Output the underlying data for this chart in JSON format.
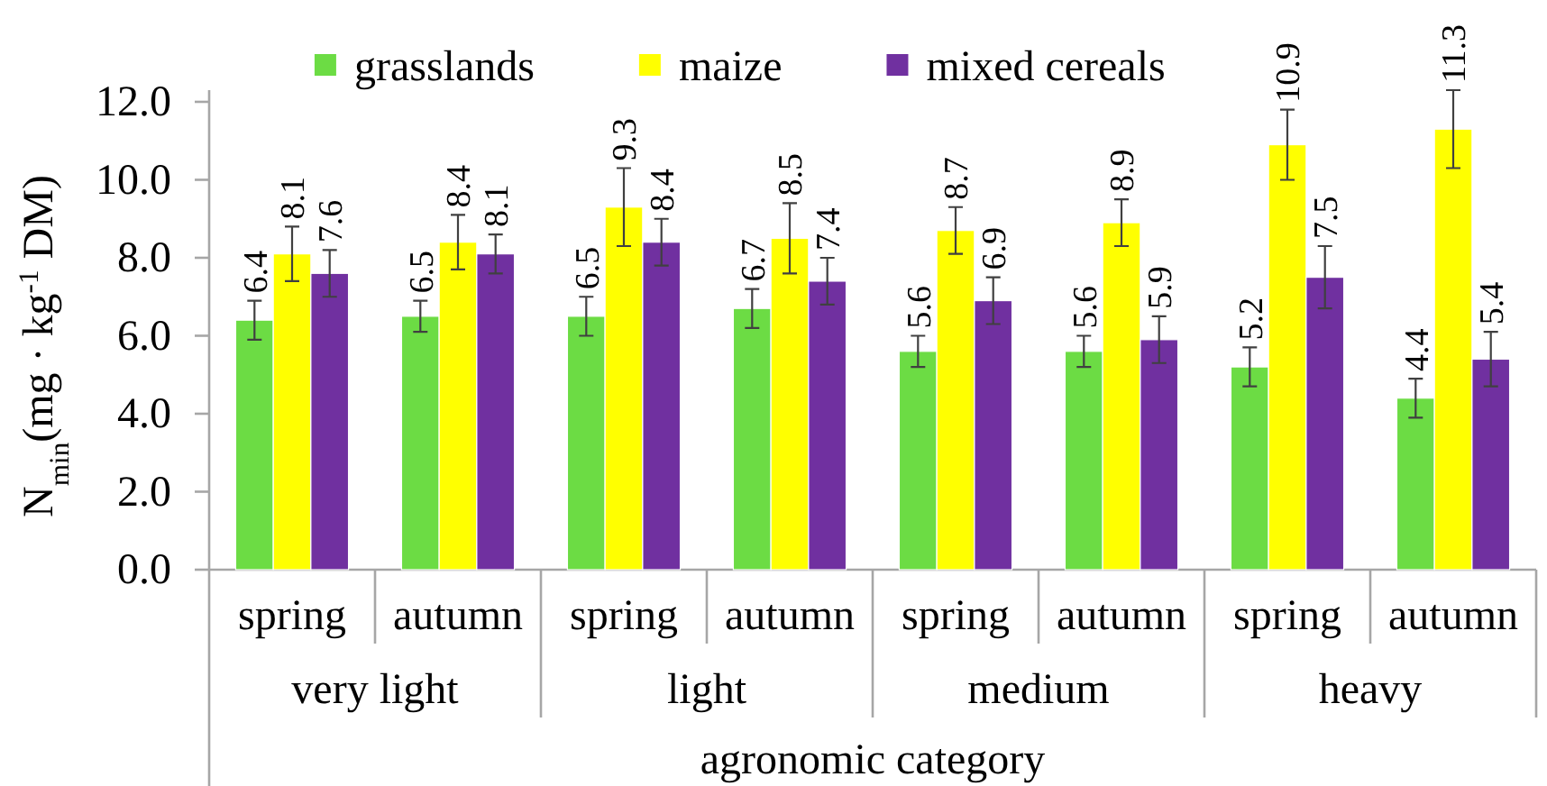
{
  "chart_data": {
    "type": "bar",
    "categories": [
      "spring",
      "autumn",
      "spring",
      "autumn",
      "spring",
      "autumn",
      "spring",
      "autumn"
    ],
    "annotations": [
      "very light",
      "light",
      "medium",
      "heavy"
    ],
    "xlabel": "agronomic category",
    "ylabel": "N$_{min}$(mg · kg$^{-1}$ DM)",
    "series": [
      {
        "name": "grasslands",
        "color": "#6cdc44",
        "values": [
          6.4,
          6.5,
          6.5,
          6.7,
          5.6,
          5.6,
          5.2,
          4.4
        ],
        "errors": [
          0.5,
          0.4,
          0.5,
          0.5,
          0.4,
          0.4,
          0.5,
          0.5
        ]
      },
      {
        "name": "maize",
        "color": "#ffff00",
        "values": [
          8.1,
          8.4,
          9.3,
          8.5,
          8.7,
          8.9,
          10.9,
          11.3
        ],
        "errors": [
          0.7,
          0.7,
          1.0,
          0.9,
          0.6,
          0.6,
          0.9,
          1.0
        ]
      },
      {
        "name": "mixed cereals",
        "color": "#7030a0",
        "values": [
          7.6,
          8.1,
          8.4,
          7.4,
          6.9,
          5.9,
          7.5,
          5.4
        ],
        "errors": [
          0.6,
          0.5,
          0.6,
          0.6,
          0.6,
          0.6,
          0.8,
          0.7
        ]
      }
    ],
    "ylim": [
      0,
      12.3
    ],
    "yticks": [
      {
        "value": 0,
        "label": "0.0"
      },
      {
        "value": 2,
        "label": "2.0"
      },
      {
        "value": 4,
        "label": "4.0"
      },
      {
        "value": 6,
        "label": "6.0"
      },
      {
        "value": 8,
        "label": "8.0"
      },
      {
        "value": 10,
        "label": "10.0"
      },
      {
        "value": 12,
        "label": "12.0"
      }
    ],
    "legend": "top",
    "data_labels": true
  }
}
